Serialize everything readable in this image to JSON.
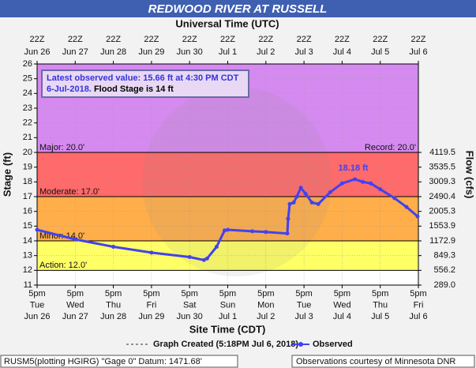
{
  "chart_data": {
    "type": "line",
    "title": "REDWOOD RIVER AT RUSSELL",
    "x2label": "Universal Time (UTC)",
    "xlabel": "Site Time (CDT)",
    "ylabel": "Stage (ft)",
    "y2label": "Flow (cfs)",
    "annotation": {
      "text": "Latest observed value: 15.66 ft at 4:30 PM CDT 6-Jul-2018.",
      "flood_stage": "Flood Stage is 14 ft"
    },
    "peak_label": "18.18 ft",
    "legend_note": "Graph Created (5:18PM Jul 6, 2018)",
    "footer_left": "RUSM5(plotting HGIRG) \"Gage 0\" Datum: 1471.68'",
    "footer_right": "Observations courtesy of Minnesota DNR",
    "xlim": [
      "2018-06-26T17:00",
      "2018-07-06T17:00"
    ],
    "xticks": [
      {
        "value": "2018-06-26T17:00",
        "label": [
          "5pm",
          "Tue",
          "Jun 26"
        ]
      },
      {
        "value": "2018-06-27T17:00",
        "label": [
          "5pm",
          "Wed",
          "Jun 27"
        ]
      },
      {
        "value": "2018-06-28T17:00",
        "label": [
          "5pm",
          "Thu",
          "Jun 28"
        ]
      },
      {
        "value": "2018-06-29T17:00",
        "label": [
          "5pm",
          "Fri",
          "Jun 29"
        ]
      },
      {
        "value": "2018-06-30T17:00",
        "label": [
          "5pm",
          "Sat",
          "Jun 30"
        ]
      },
      {
        "value": "2018-07-01T17:00",
        "label": [
          "5pm",
          "Sun",
          "Jul 1"
        ]
      },
      {
        "value": "2018-07-02T17:00",
        "label": [
          "5pm",
          "Mon",
          "Jul 2"
        ]
      },
      {
        "value": "2018-07-03T17:00",
        "label": [
          "5pm",
          "Tue",
          "Jul 3"
        ]
      },
      {
        "value": "2018-07-04T17:00",
        "label": [
          "5pm",
          "Wed",
          "Jul 4"
        ]
      },
      {
        "value": "2018-07-05T17:00",
        "label": [
          "5pm",
          "Thu",
          "Jul 5"
        ]
      },
      {
        "value": "2018-07-06T17:00",
        "label": [
          "5pm",
          "Fri",
          "Jul 6"
        ]
      }
    ],
    "x2ticks": [
      {
        "value": "2018-06-26T17:00",
        "label": [
          "22Z",
          "Jun 26"
        ]
      },
      {
        "value": "2018-06-27T17:00",
        "label": [
          "22Z",
          "Jun 27"
        ]
      },
      {
        "value": "2018-06-28T17:00",
        "label": [
          "22Z",
          "Jun 28"
        ]
      },
      {
        "value": "2018-06-29T17:00",
        "label": [
          "22Z",
          "Jun 29"
        ]
      },
      {
        "value": "2018-06-30T17:00",
        "label": [
          "22Z",
          "Jun 30"
        ]
      },
      {
        "value": "2018-07-01T17:00",
        "label": [
          "22Z",
          "Jul 1"
        ]
      },
      {
        "value": "2018-07-02T17:00",
        "label": [
          "22Z",
          "Jul 2"
        ]
      },
      {
        "value": "2018-07-03T17:00",
        "label": [
          "22Z",
          "Jul 3"
        ]
      },
      {
        "value": "2018-07-04T17:00",
        "label": [
          "22Z",
          "Jul 4"
        ]
      },
      {
        "value": "2018-07-05T17:00",
        "label": [
          "22Z",
          "Jul 5"
        ]
      },
      {
        "value": "2018-07-06T17:00",
        "label": [
          "22Z",
          "Jul 6"
        ]
      }
    ],
    "ylim": [
      11,
      26
    ],
    "yticks": [
      11,
      12,
      13,
      14,
      15,
      16,
      17,
      18,
      19,
      20,
      21,
      22,
      23,
      24,
      25,
      26
    ],
    "y2ticks": [
      {
        "value": 289,
        "label": "289.0"
      },
      556.2,
      849.3,
      1172.9,
      1553.9,
      2005.3,
      2490.4,
      3009.3,
      3535.5,
      4119.5
    ],
    "thresholds": [
      {
        "label": "Major: 20.0'",
        "value": 20,
        "color": "#d58af0"
      },
      {
        "label": "Moderate: 17.0'",
        "value": 17,
        "color": "#ff6a6a"
      },
      {
        "label": "Minor: 14.0'",
        "value": 14,
        "color": "#ffae4a"
      },
      {
        "label": "Action: 12.0'",
        "value": 12,
        "color": "#ffff66"
      }
    ],
    "record": {
      "label": "Record: 20.0'",
      "value": 20
    },
    "series": [
      {
        "name": "Observed",
        "color": "#4242ee",
        "x": [
          "2018-06-26T17:00",
          "2018-06-27T17:00",
          "2018-06-28T17:00",
          "2018-06-29T17:00",
          "2018-06-30T17:00",
          "2018-07-01T02:00",
          "2018-07-01T04:00",
          "2018-07-01T10:00",
          "2018-07-01T15:00",
          "2018-07-01T17:00",
          "2018-07-02T08:30",
          "2018-07-02T17:00",
          "2018-07-03T06:30",
          "2018-07-03T07:00",
          "2018-07-03T08:00",
          "2018-07-03T10:30",
          "2018-07-03T12:30",
          "2018-07-03T15:00",
          "2018-07-03T18:00",
          "2018-07-03T22:00",
          "2018-07-04T02:00",
          "2018-07-04T09:30",
          "2018-07-04T17:00",
          "2018-07-05T01:00",
          "2018-07-05T06:00",
          "2018-07-05T11:00",
          "2018-07-05T17:00",
          "2018-07-06T02:00",
          "2018-07-06T09:30",
          "2018-07-06T16:30"
        ],
        "values": [
          14.75,
          14.1,
          13.6,
          13.2,
          12.9,
          12.7,
          12.8,
          13.6,
          14.7,
          14.75,
          14.65,
          14.6,
          14.5,
          15.5,
          16.5,
          16.6,
          17.0,
          17.6,
          17.2,
          16.6,
          16.5,
          17.3,
          17.9,
          18.18,
          18.0,
          17.9,
          17.5,
          16.9,
          16.3,
          15.66
        ]
      }
    ]
  }
}
